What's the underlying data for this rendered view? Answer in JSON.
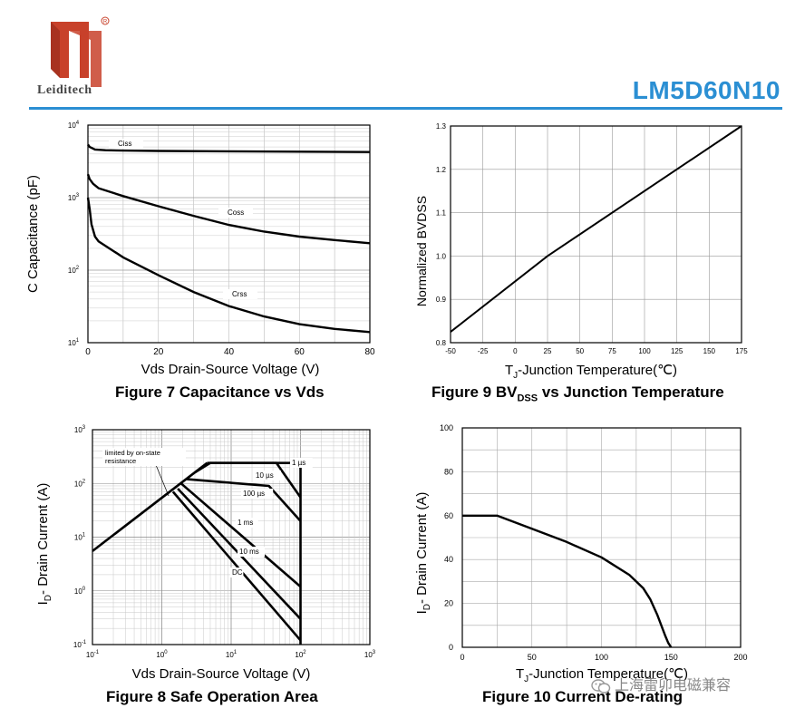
{
  "header": {
    "brand": "Leiditech",
    "part_number": "LM5D60N10",
    "accent_color": "#2b8fd3",
    "logo_color": "#c8412a"
  },
  "captions": {
    "fig7": "Figure 7 Capacitance vs Vds",
    "fig9_pre": "Figure 9 BV",
    "fig9_sub": "DSS",
    "fig9_post": " vs Junction Temperature",
    "fig8": "Figure 8 Safe Operation Area",
    "fig10": "Figure 10 Current De-rating"
  },
  "watermark": {
    "text": "上海雷卯电磁兼容",
    "icon": "wechat-icon"
  },
  "chart_data": [
    {
      "id": "fig7",
      "type": "line",
      "xlabel": "Vds Drain-Source Voltage (V)",
      "ylabel": "C Capacitance (pF)",
      "yscale": "log",
      "xlim": [
        0,
        80
      ],
      "ylim": [
        10,
        10000
      ],
      "xticks": [
        "0",
        "20",
        "40",
        "60",
        "80"
      ],
      "yticks": [
        {
          "base": "10",
          "exp": "4"
        },
        {
          "base": "10",
          "exp": "3"
        },
        {
          "base": "10",
          "exp": "2"
        },
        {
          "base": "10",
          "exp": "1"
        }
      ],
      "grid": true,
      "series": [
        {
          "name": "Ciss",
          "x": [
            0,
            0.5,
            2,
            5,
            10,
            20,
            40,
            60,
            80
          ],
          "y": [
            5400,
            5000,
            4600,
            4500,
            4450,
            4400,
            4350,
            4300,
            4250
          ]
        },
        {
          "name": "Coss",
          "x": [
            0,
            0.5,
            1.5,
            3,
            10,
            20,
            30,
            40,
            50,
            60,
            70,
            80
          ],
          "y": [
            2100,
            1800,
            1550,
            1350,
            1050,
            760,
            560,
            420,
            340,
            290,
            260,
            235
          ]
        },
        {
          "name": "Crss",
          "x": [
            0,
            0.5,
            1,
            2,
            3,
            10,
            20,
            30,
            40,
            50,
            60,
            70,
            80
          ],
          "y": [
            1000,
            700,
            430,
            290,
            250,
            150,
            85,
            50,
            32,
            23,
            18,
            15.5,
            14
          ]
        }
      ]
    },
    {
      "id": "fig9",
      "type": "line",
      "xlabel_pre": "T",
      "xlabel_sub": "J",
      "xlabel_post": "-Junction Temperature(℃)",
      "ylabel": "Normalized BVDSS",
      "xlim": [
        -50,
        175
      ],
      "ylim": [
        0.8,
        1.3
      ],
      "xticks": [
        "-50",
        "-25",
        "0",
        "25",
        "50",
        "75",
        "100",
        "125",
        "150",
        "175"
      ],
      "yticks": [
        "1.3",
        "1.2",
        "1.1",
        "1.0",
        "0.9",
        "0.8"
      ],
      "grid": true,
      "series": [
        {
          "x": [
            -50,
            25,
            175
          ],
          "y": [
            0.825,
            1.0,
            1.3
          ]
        }
      ]
    },
    {
      "id": "fig8",
      "type": "line",
      "xlabel": "Vds Drain-Source Voltage (V)",
      "ylabel_pre": "I",
      "ylabel_sub": "D",
      "ylabel_post": "- Drain Current (A)",
      "xscale": "log",
      "yscale": "log",
      "xlim": [
        0.1,
        1000
      ],
      "ylim": [
        0.1,
        1000
      ],
      "xticks": [
        {
          "base": "10",
          "exp": "-1"
        },
        {
          "base": "10",
          "exp": "0"
        },
        {
          "base": "10",
          "exp": "1"
        },
        {
          "base": "10",
          "exp": "2"
        },
        {
          "base": "10",
          "exp": "3"
        }
      ],
      "yticks": [
        {
          "base": "10",
          "exp": "3"
        },
        {
          "base": "10",
          "exp": "2"
        },
        {
          "base": "10",
          "exp": "1"
        },
        {
          "base": "10",
          "exp": "0"
        },
        {
          "base": "10",
          "exp": "-1"
        }
      ],
      "grid": true,
      "annotation": "limited by on-state resistance",
      "series": [
        {
          "name": "limit",
          "x": [
            0.1,
            4.5
          ],
          "y": [
            5.5,
            240
          ]
        },
        {
          "name": "1 µs",
          "x": [
            4.5,
            75,
            100,
            100
          ],
          "y": [
            240,
            240,
            200,
            0.1
          ]
        },
        {
          "name": "10 µs",
          "x": [
            3.0,
            5.0,
            45,
            100
          ],
          "y": [
            160,
            240,
            240,
            55
          ]
        },
        {
          "name": "100 µs",
          "x": [
            2.3,
            35,
            100
          ],
          "y": [
            120,
            90,
            20
          ]
        },
        {
          "name": "1 ms",
          "x": [
            1.9,
            100
          ],
          "y": [
            100,
            1.2
          ]
        },
        {
          "name": "10 ms",
          "x": [
            1.7,
            100
          ],
          "y": [
            80,
            0.3
          ]
        },
        {
          "name": "DC",
          "x": [
            1.45,
            100
          ],
          "y": [
            70,
            0.12
          ]
        }
      ]
    },
    {
      "id": "fig10",
      "type": "line",
      "xlabel_pre": "T",
      "xlabel_sub": "J",
      "xlabel_post": "-Junction Temperature(℃)",
      "ylabel_pre": "I",
      "ylabel_sub": "D",
      "ylabel_post": "- Drain Current (A)",
      "xlim": [
        0,
        200
      ],
      "ylim": [
        0,
        100
      ],
      "xticks": [
        "0",
        "50",
        "100",
        "150",
        "200"
      ],
      "yticks": [
        "100",
        "80",
        "60",
        "40",
        "20",
        "0"
      ],
      "grid": true,
      "series": [
        {
          "x": [
            0,
            25,
            50,
            75,
            100,
            120,
            130,
            135,
            140,
            143,
            146,
            148,
            150
          ],
          "y": [
            60,
            60,
            54,
            48,
            41,
            33,
            27,
            22,
            15,
            10,
            5,
            2,
            0
          ]
        }
      ]
    }
  ]
}
